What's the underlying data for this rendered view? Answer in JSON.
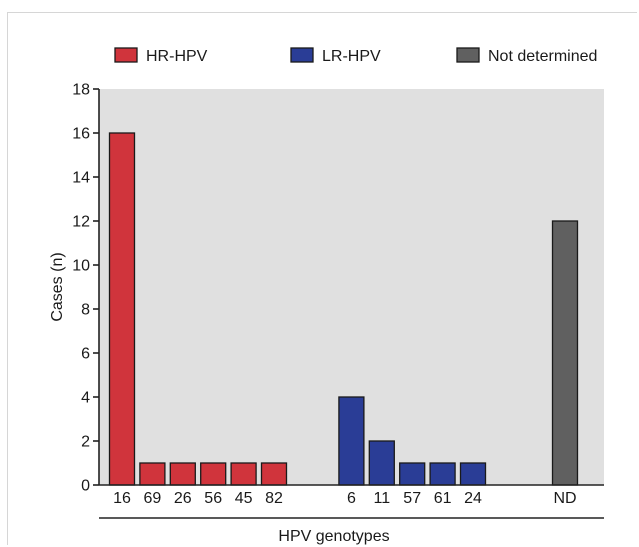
{
  "chart_data": {
    "type": "bar",
    "ylabel": "Cases (n)",
    "xlabel": "HPV genotypes",
    "ylim": [
      0,
      18
    ],
    "yticks": [
      0,
      2,
      4,
      6,
      8,
      10,
      12,
      14,
      16,
      18
    ],
    "legend": "top",
    "grid": false,
    "plot_background": "#e0e0e0",
    "groups": [
      {
        "name": "HR-HPV",
        "color": "#d0343c",
        "categories": [
          "16",
          "69",
          "26",
          "56",
          "45",
          "82"
        ],
        "values": [
          16,
          1,
          1,
          1,
          1,
          1
        ]
      },
      {
        "name": "LR-HPV",
        "color": "#2a3d96",
        "categories": [
          "6",
          "11",
          "57",
          "61",
          "24"
        ],
        "values": [
          4,
          2,
          1,
          1,
          1
        ]
      },
      {
        "name": "Not determined",
        "color": "#606060",
        "categories": [
          "ND"
        ],
        "values": [
          12
        ]
      }
    ]
  }
}
